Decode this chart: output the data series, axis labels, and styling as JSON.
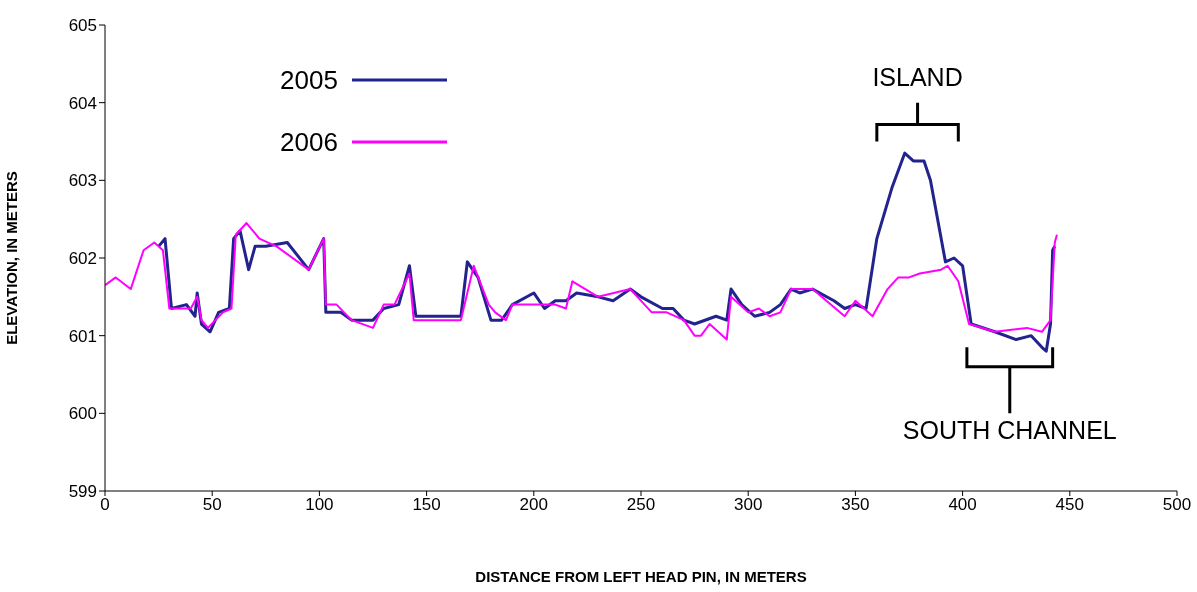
{
  "chart_data": {
    "type": "line",
    "xlabel": "DISTANCE FROM LEFT HEAD PIN, IN METERS",
    "ylabel": "ELEVATION, IN METERS",
    "xlim": [
      0,
      500
    ],
    "xticks": [
      0,
      50,
      100,
      150,
      200,
      250,
      300,
      350,
      400,
      450,
      500
    ],
    "ylim": [
      599,
      605
    ],
    "yticks": [
      599,
      600,
      601,
      602,
      603,
      604,
      605
    ],
    "legend": "top left",
    "marker": "none",
    "line_style": "solid",
    "series": [
      {
        "name": "2005",
        "color": "#23238e",
        "x": [
          25,
          28,
          31,
          38,
          42,
          43,
          45,
          49,
          53,
          58,
          60,
          63,
          67,
          70,
          75,
          85,
          95,
          102,
          103,
          110,
          115,
          125,
          130,
          137,
          142,
          145,
          166,
          169,
          174,
          180,
          185,
          190,
          200,
          205,
          210,
          215,
          220,
          230,
          237,
          245,
          250,
          260,
          265,
          270,
          275,
          285,
          290,
          292,
          297,
          303,
          310,
          315,
          320,
          324,
          330,
          340,
          345,
          350,
          355,
          360,
          367,
          373,
          377,
          382,
          385,
          392,
          396,
          400,
          404,
          415,
          425,
          432,
          437,
          439,
          441,
          442,
          443
        ],
        "values": [
          602.15,
          602.25,
          601.35,
          601.4,
          601.25,
          601.55,
          601.15,
          601.05,
          601.3,
          601.35,
          602.25,
          602.35,
          601.85,
          602.15,
          602.15,
          602.2,
          601.85,
          602.25,
          601.3,
          601.3,
          601.2,
          601.2,
          601.35,
          601.4,
          601.9,
          601.25,
          601.25,
          601.95,
          601.75,
          601.2,
          601.2,
          601.4,
          601.55,
          601.35,
          601.45,
          601.45,
          601.55,
          601.5,
          601.45,
          601.6,
          601.5,
          601.35,
          601.35,
          601.2,
          601.15,
          601.25,
          601.2,
          601.6,
          601.4,
          601.25,
          601.3,
          601.4,
          601.6,
          601.55,
          601.6,
          601.45,
          601.35,
          601.4,
          601.35,
          602.25,
          602.9,
          603.35,
          603.25,
          603.25,
          603.0,
          601.95,
          602.0,
          601.9,
          601.15,
          601.05,
          600.95,
          601.0,
          600.85,
          600.8,
          601.15,
          602.1,
          602.15
        ]
      },
      {
        "name": "2006",
        "color": "#ff00ff",
        "x": [
          0,
          5,
          12,
          18,
          23,
          27,
          30,
          40,
          43,
          45,
          48,
          55,
          59,
          61,
          66,
          72,
          80,
          95,
          102,
          103,
          108,
          115,
          125,
          130,
          135,
          142,
          144,
          166,
          172,
          179,
          182,
          187,
          190,
          210,
          215,
          218,
          230,
          245,
          255,
          262,
          270,
          275,
          278,
          282,
          290,
          292,
          300,
          305,
          310,
          315,
          320,
          330,
          345,
          350,
          354,
          358,
          365,
          370,
          375,
          380,
          390,
          393,
          398,
          403,
          415,
          430,
          437,
          441,
          443,
          444
        ],
        "values": [
          601.65,
          601.75,
          601.6,
          602.1,
          602.2,
          602.1,
          601.35,
          601.35,
          601.5,
          601.2,
          601.1,
          601.3,
          601.35,
          602.3,
          602.45,
          602.25,
          602.15,
          601.85,
          602.25,
          601.4,
          601.4,
          601.2,
          601.1,
          601.4,
          601.4,
          601.8,
          601.2,
          601.2,
          601.9,
          601.4,
          601.3,
          601.2,
          601.4,
          601.4,
          601.35,
          601.7,
          601.5,
          601.6,
          601.3,
          601.3,
          601.2,
          601.0,
          601.0,
          601.15,
          600.95,
          601.5,
          601.3,
          601.35,
          601.25,
          601.3,
          601.6,
          601.6,
          601.25,
          601.45,
          601.35,
          601.25,
          601.6,
          601.75,
          601.75,
          601.8,
          601.85,
          601.9,
          601.7,
          601.15,
          601.05,
          601.1,
          601.05,
          601.2,
          602.2,
          602.3
        ]
      }
    ],
    "annotations": [
      "ISLAND",
      "SOUTH CHANNEL"
    ]
  }
}
